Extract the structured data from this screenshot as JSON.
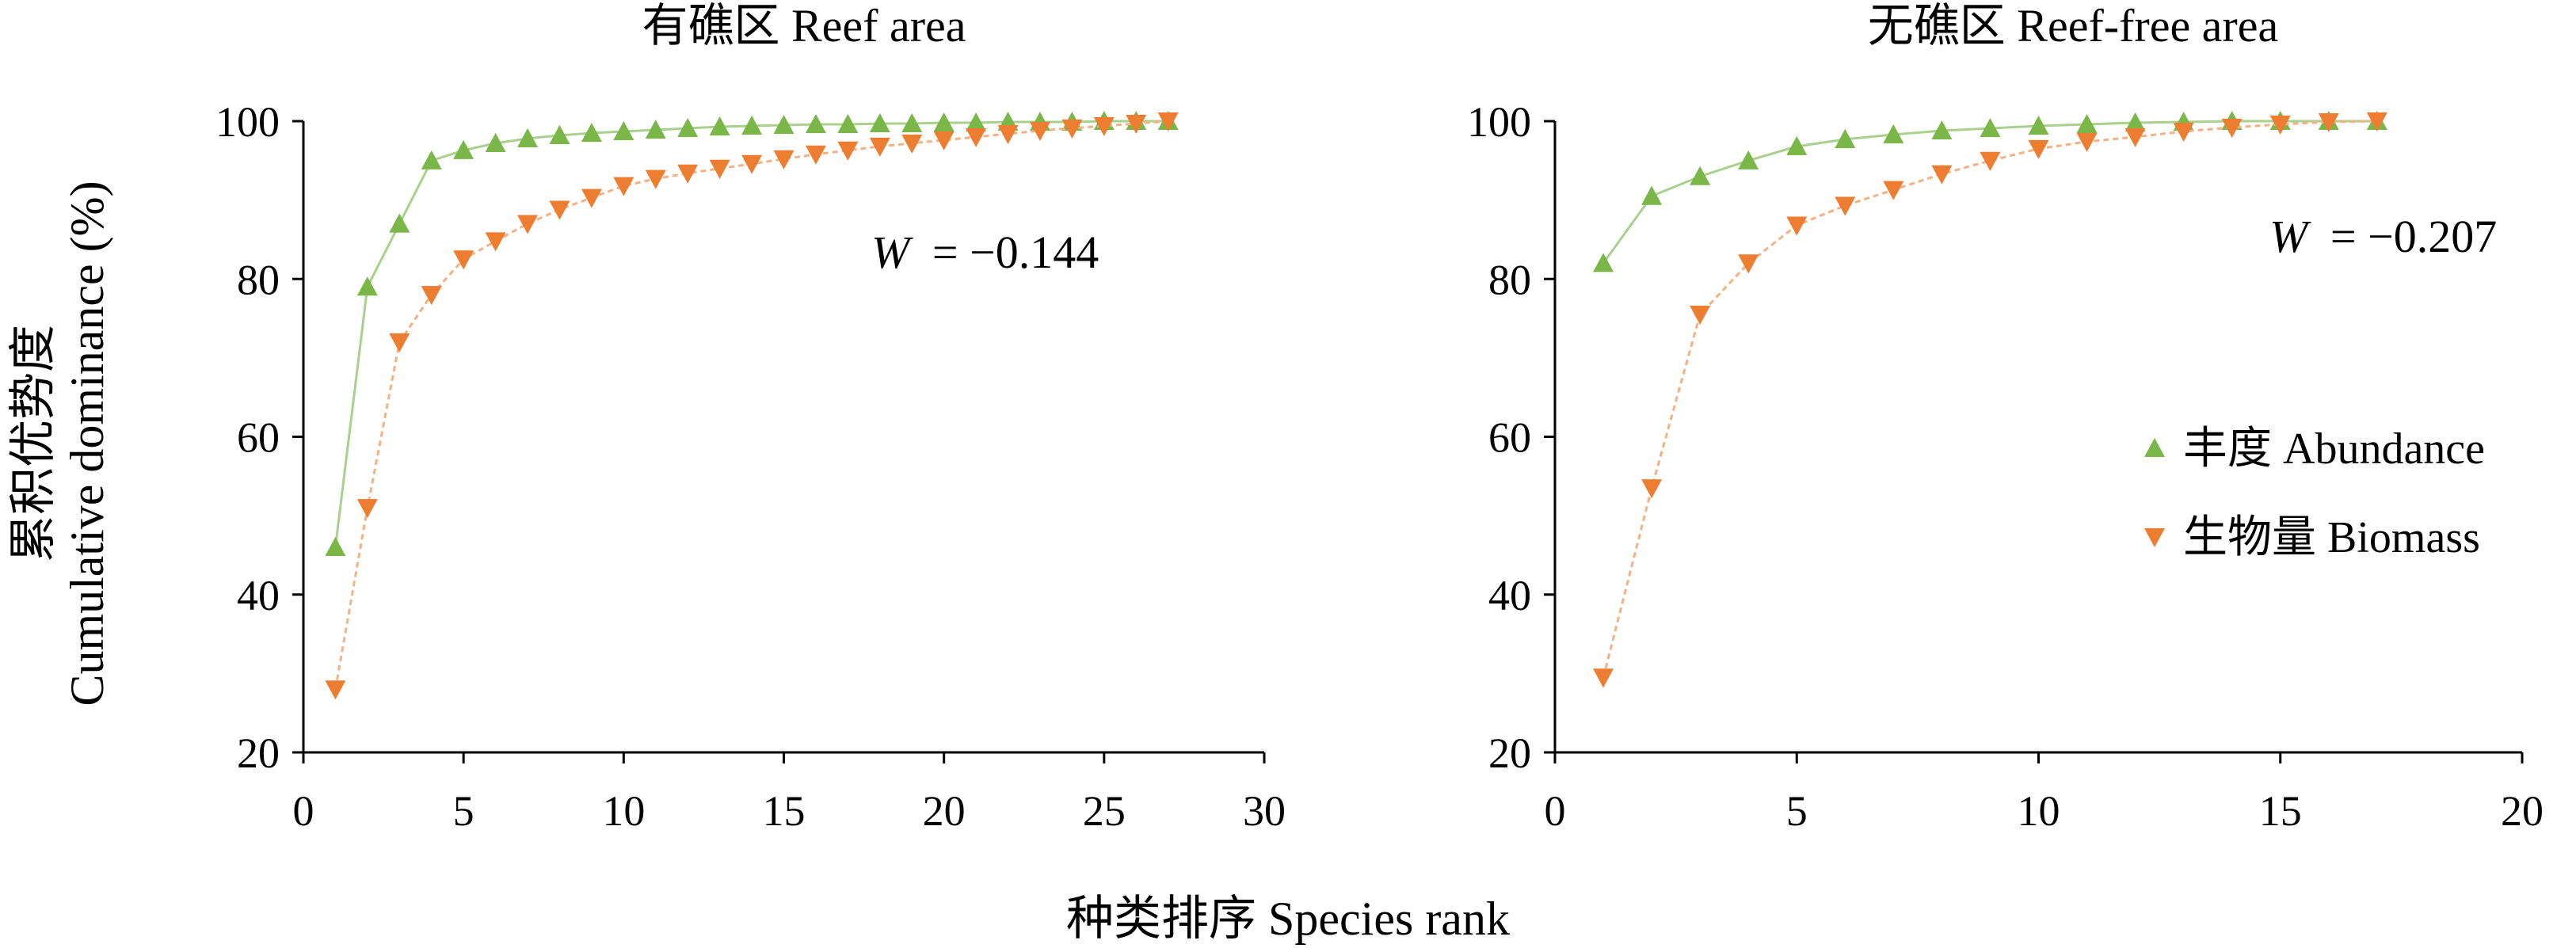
{
  "figure": {
    "ylabel_zh": "累积优势度",
    "ylabel_en": "Cumulative dominance (%)",
    "xlabel": "种类排序 Species rank"
  },
  "legend": {
    "abundance": "丰度 Abundance",
    "biomass": "生物量 Biomass"
  },
  "colors": {
    "abundance": "#7ab648",
    "abundance_line": "#a9d18e",
    "biomass": "#ed7d31",
    "biomass_line": "#f4b183"
  },
  "chart_data": [
    {
      "type": "line",
      "title": "有礁区 Reef area",
      "annotation_symbol": "W",
      "annotation_value": "= −0.144",
      "xlim": [
        0,
        30
      ],
      "ylim": [
        20,
        100
      ],
      "xticks": [
        0,
        5,
        10,
        15,
        20,
        25,
        30
      ],
      "yticks": [
        20,
        40,
        60,
        80,
        100
      ],
      "series": [
        {
          "key": "abundance",
          "marker": "triangle-up",
          "x": [
            1,
            2,
            3,
            4,
            5,
            6,
            7,
            8,
            9,
            10,
            11,
            12,
            13,
            14,
            15,
            16,
            17,
            18,
            19,
            20,
            21,
            22,
            23,
            24,
            25,
            26,
            27
          ],
          "values": [
            46,
            79,
            87,
            95,
            96.3,
            97.2,
            97.8,
            98.2,
            98.5,
            98.7,
            98.9,
            99.1,
            99.3,
            99.4,
            99.5,
            99.6,
            99.6,
            99.7,
            99.7,
            99.8,
            99.8,
            99.9,
            99.9,
            99.9,
            100,
            100,
            100
          ]
        },
        {
          "key": "biomass",
          "marker": "triangle-down",
          "x": [
            1,
            2,
            3,
            4,
            5,
            6,
            7,
            8,
            9,
            10,
            11,
            12,
            13,
            14,
            15,
            16,
            17,
            18,
            19,
            20,
            21,
            22,
            23,
            24,
            25,
            26,
            27
          ],
          "values": [
            28,
            51,
            72,
            78,
            82.5,
            84.8,
            87,
            88.8,
            90.3,
            91.8,
            92.7,
            93.4,
            94,
            94.6,
            95.2,
            95.8,
            96.3,
            96.8,
            97.2,
            97.6,
            98,
            98.4,
            98.8,
            99.1,
            99.4,
            99.7,
            100
          ]
        }
      ]
    },
    {
      "type": "line",
      "title": "无礁区 Reef-free area",
      "annotation_symbol": "W",
      "annotation_value": "= −0.207",
      "xlim": [
        0,
        20
      ],
      "ylim": [
        20,
        100
      ],
      "xticks": [
        0,
        5,
        10,
        15,
        20
      ],
      "yticks": [
        20,
        40,
        60,
        80,
        100
      ],
      "series": [
        {
          "key": "abundance",
          "marker": "triangle-up",
          "x": [
            1,
            2,
            3,
            4,
            5,
            6,
            7,
            8,
            9,
            10,
            11,
            12,
            13,
            14,
            15,
            16,
            17
          ],
          "values": [
            82,
            90.5,
            93,
            95,
            96.8,
            97.7,
            98.3,
            98.8,
            99.1,
            99.4,
            99.6,
            99.8,
            99.9,
            100,
            100,
            100,
            100
          ]
        },
        {
          "key": "biomass",
          "marker": "triangle-down",
          "x": [
            1,
            2,
            3,
            4,
            5,
            6,
            7,
            8,
            9,
            10,
            11,
            12,
            13,
            14,
            15,
            16,
            17
          ],
          "values": [
            29.5,
            53.5,
            75.5,
            82,
            86.8,
            89.3,
            91.3,
            93.3,
            95,
            96.5,
            97.4,
            98,
            98.7,
            99.2,
            99.6,
            99.9,
            100
          ]
        }
      ]
    }
  ]
}
